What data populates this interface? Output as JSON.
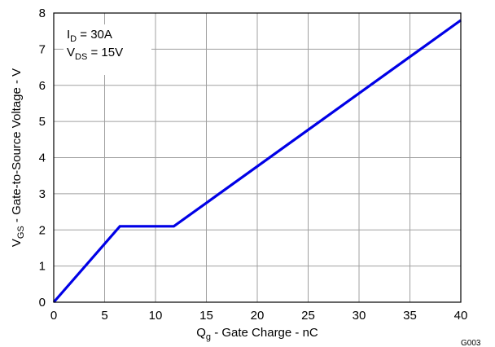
{
  "chart_data": {
    "type": "line",
    "x": [
      0,
      6.5,
      11.8,
      40
    ],
    "y": [
      0,
      2.1,
      2.1,
      7.8
    ],
    "xlim": [
      0,
      40
    ],
    "ylim": [
      0,
      8
    ],
    "x_ticks": [
      "0",
      "5",
      "10",
      "15",
      "20",
      "25",
      "30",
      "35",
      "40"
    ],
    "y_ticks": [
      "0",
      "1",
      "2",
      "3",
      "4",
      "5",
      "6",
      "7",
      "8"
    ],
    "grid": true,
    "line_color": "#0000e6",
    "xlabel": {
      "main": "Q",
      "sub": "g",
      "rest": " - Gate Charge - nC"
    },
    "ylabel": {
      "main": "V",
      "sub": "GS",
      "rest": " - Gate-to-Source Voltage - V"
    },
    "annotations": [
      {
        "main": "I",
        "sub": "D",
        "rest": " = 30A"
      },
      {
        "main": "V",
        "sub": "DS",
        "rest": " = 15V"
      }
    ],
    "corner_label": "G003"
  }
}
